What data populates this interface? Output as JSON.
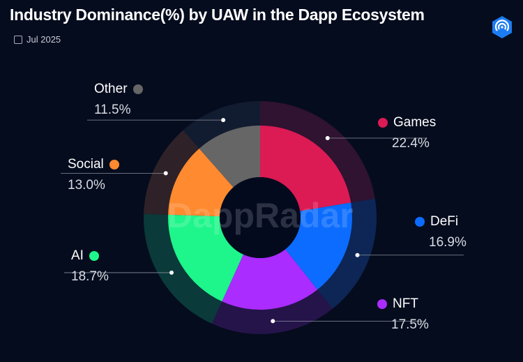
{
  "header": {
    "title": "Industry Dominance(%) by UAW in the Dapp Ecosystem",
    "date": "Jul 2025",
    "watermark": "DappRadar"
  },
  "chart_data": {
    "type": "pie",
    "variant": "donut",
    "categories": [
      "Games",
      "DeFi",
      "NFT",
      "AI",
      "Social",
      "Other"
    ],
    "values": [
      22.4,
      16.9,
      17.5,
      18.7,
      13.0,
      11.5
    ],
    "labels": [
      "22.4%",
      "16.9%",
      "17.5%",
      "18.7%",
      "13.0%",
      "11.5%"
    ],
    "colors": [
      "#dc1a54",
      "#0b6cff",
      "#aa2cff",
      "#1ef58a",
      "#ff8a30",
      "#666666"
    ],
    "ring_colors": [
      "#2f1330",
      "#0d2656",
      "#25144a",
      "#0a3a3a",
      "#2e2228",
      "#121c30"
    ],
    "start": "12 o'clock, clockwise"
  }
}
